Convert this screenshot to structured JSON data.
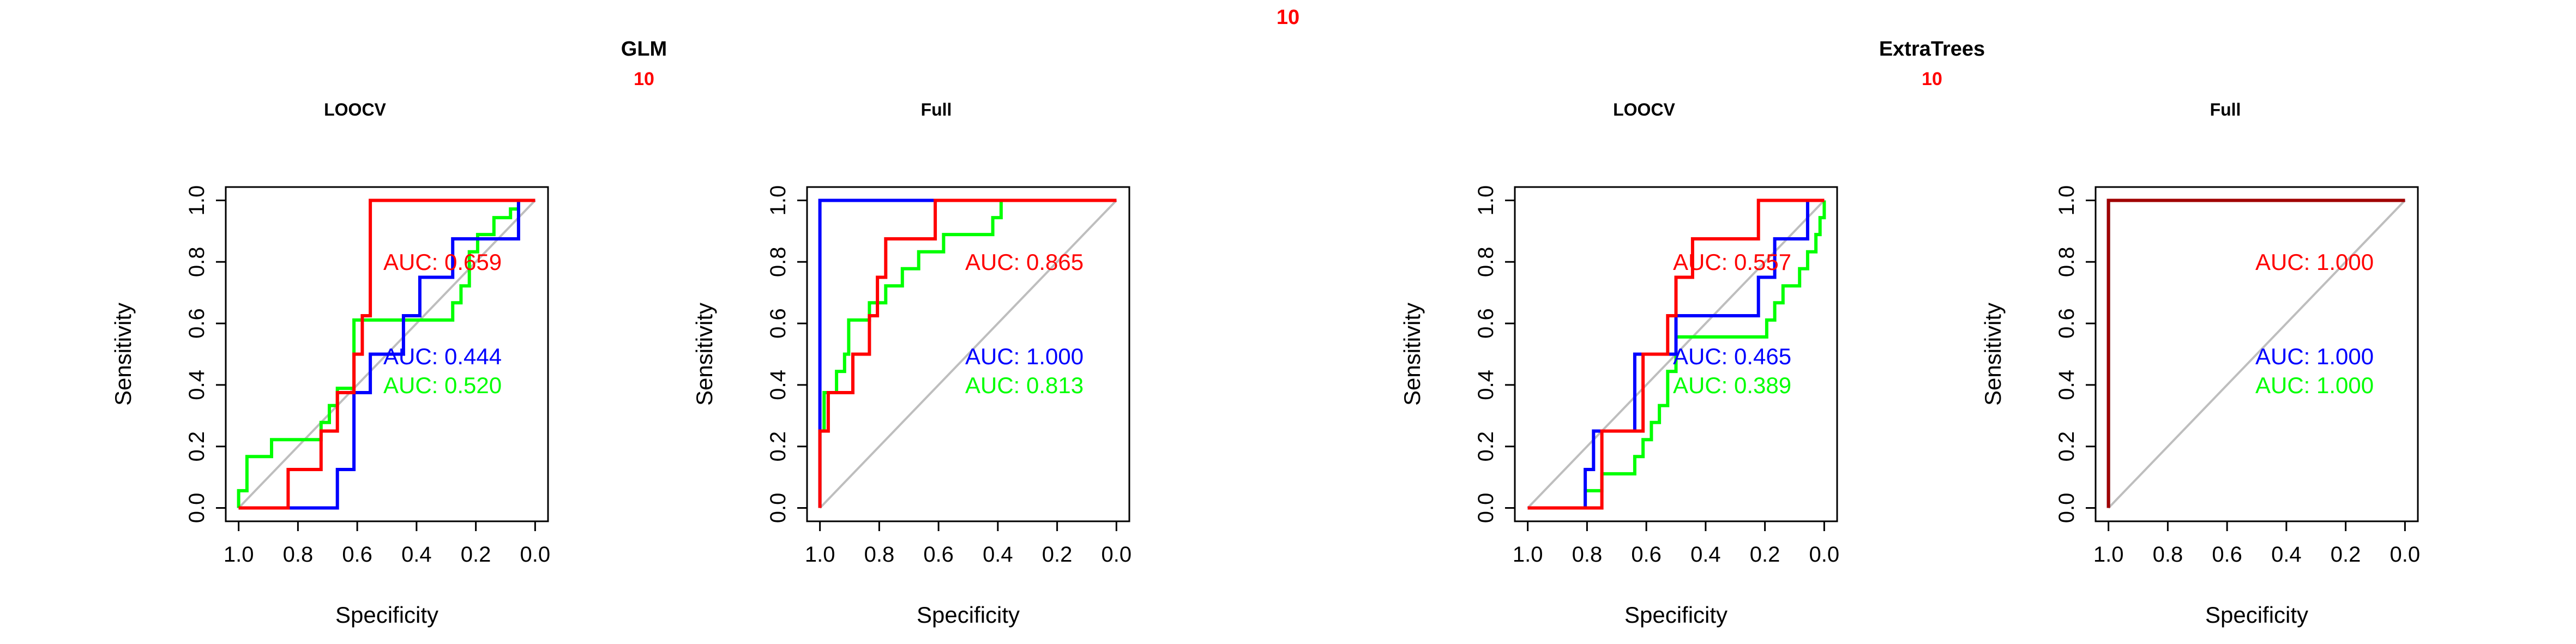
{
  "figure": {
    "header_label": "10",
    "groups": [
      {
        "title": "GLM",
        "subtitle": "10"
      },
      {
        "title": "ExtraTrees",
        "subtitle": "10"
      }
    ]
  },
  "colors": {
    "red": "#ff0000",
    "blue": "#0000ff",
    "green": "#00ff00",
    "darkred": "#a00000",
    "diagonal": "#bebebe"
  },
  "chart_data": [
    {
      "type": "line",
      "group": "GLM",
      "title": "LOOCV",
      "xlabel": "Specificity",
      "ylabel": "Sensitivity",
      "xlim": [
        1.0,
        0.0
      ],
      "ylim": [
        0.0,
        1.0
      ],
      "x_ticks": [
        "1.0",
        "0.8",
        "0.6",
        "0.4",
        "0.2",
        "0.0"
      ],
      "y_ticks": [
        "0.0",
        "0.2",
        "0.4",
        "0.6",
        "0.8",
        "1.0"
      ],
      "diagonal": true,
      "series": [
        {
          "color": "red",
          "auc": "AUC: 0.659",
          "points": [
            [
              1.0,
              0.0
            ],
            [
              0.833,
              0.0
            ],
            [
              0.833,
              0.125
            ],
            [
              0.722,
              0.125
            ],
            [
              0.722,
              0.25
            ],
            [
              0.667,
              0.25
            ],
            [
              0.667,
              0.375
            ],
            [
              0.611,
              0.375
            ],
            [
              0.611,
              0.5
            ],
            [
              0.583,
              0.5
            ],
            [
              0.583,
              0.625
            ],
            [
              0.556,
              0.625
            ],
            [
              0.556,
              1.0
            ],
            [
              0.0,
              1.0
            ]
          ]
        },
        {
          "color": "blue",
          "auc": "AUC: 0.444",
          "points": [
            [
              1.0,
              0.0
            ],
            [
              0.667,
              0.0
            ],
            [
              0.667,
              0.125
            ],
            [
              0.611,
              0.125
            ],
            [
              0.611,
              0.375
            ],
            [
              0.556,
              0.375
            ],
            [
              0.556,
              0.5
            ],
            [
              0.444,
              0.5
            ],
            [
              0.444,
              0.625
            ],
            [
              0.389,
              0.625
            ],
            [
              0.389,
              0.75
            ],
            [
              0.278,
              0.75
            ],
            [
              0.278,
              0.875
            ],
            [
              0.056,
              0.875
            ],
            [
              0.056,
              1.0
            ],
            [
              0.0,
              1.0
            ]
          ]
        },
        {
          "color": "green",
          "auc": "AUC: 0.520",
          "points": [
            [
              1.0,
              0.0
            ],
            [
              1.0,
              0.056
            ],
            [
              0.972,
              0.056
            ],
            [
              0.972,
              0.111
            ],
            [
              0.972,
              0.167
            ],
            [
              0.889,
              0.167
            ],
            [
              0.889,
              0.222
            ],
            [
              0.722,
              0.222
            ],
            [
              0.722,
              0.278
            ],
            [
              0.694,
              0.278
            ],
            [
              0.694,
              0.333
            ],
            [
              0.667,
              0.333
            ],
            [
              0.667,
              0.389
            ],
            [
              0.611,
              0.389
            ],
            [
              0.611,
              0.611
            ],
            [
              0.278,
              0.611
            ],
            [
              0.278,
              0.667
            ],
            [
              0.25,
              0.667
            ],
            [
              0.25,
              0.722
            ],
            [
              0.222,
              0.722
            ],
            [
              0.222,
              0.833
            ],
            [
              0.194,
              0.833
            ],
            [
              0.194,
              0.889
            ],
            [
              0.139,
              0.889
            ],
            [
              0.139,
              0.944
            ],
            [
              0.083,
              0.944
            ],
            [
              0.083,
              0.972
            ],
            [
              0.056,
              0.972
            ],
            [
              0.056,
              1.0
            ],
            [
              0.0,
              1.0
            ]
          ]
        }
      ]
    },
    {
      "type": "line",
      "group": "GLM",
      "title": "Full",
      "xlabel": "Specificity",
      "ylabel": "Sensitivity",
      "xlim": [
        1.0,
        0.0
      ],
      "ylim": [
        0.0,
        1.0
      ],
      "x_ticks": [
        "1.0",
        "0.8",
        "0.6",
        "0.4",
        "0.2",
        "0.0"
      ],
      "y_ticks": [
        "0.0",
        "0.2",
        "0.4",
        "0.6",
        "0.8",
        "1.0"
      ],
      "diagonal": true,
      "series": [
        {
          "color": "red",
          "auc": "AUC: 0.865",
          "points": [
            [
              1.0,
              0.0
            ],
            [
              1.0,
              0.25
            ],
            [
              0.972,
              0.25
            ],
            [
              0.972,
              0.375
            ],
            [
              0.889,
              0.375
            ],
            [
              0.889,
              0.5
            ],
            [
              0.833,
              0.5
            ],
            [
              0.833,
              0.625
            ],
            [
              0.806,
              0.625
            ],
            [
              0.806,
              0.75
            ],
            [
              0.778,
              0.75
            ],
            [
              0.778,
              0.875
            ],
            [
              0.611,
              0.875
            ],
            [
              0.611,
              1.0
            ],
            [
              0.0,
              1.0
            ]
          ]
        },
        {
          "color": "blue",
          "auc": "AUC: 1.000",
          "points": [
            [
              1.0,
              0.0
            ],
            [
              1.0,
              1.0
            ],
            [
              0.0,
              1.0
            ]
          ]
        },
        {
          "color": "green",
          "auc": "AUC: 0.813",
          "points": [
            [
              1.0,
              0.0
            ],
            [
              1.0,
              0.25
            ],
            [
              0.986,
              0.25
            ],
            [
              0.986,
              0.375
            ],
            [
              0.944,
              0.375
            ],
            [
              0.944,
              0.444
            ],
            [
              0.917,
              0.444
            ],
            [
              0.917,
              0.5
            ],
            [
              0.903,
              0.5
            ],
            [
              0.903,
              0.611
            ],
            [
              0.833,
              0.611
            ],
            [
              0.833,
              0.667
            ],
            [
              0.778,
              0.667
            ],
            [
              0.778,
              0.722
            ],
            [
              0.722,
              0.722
            ],
            [
              0.722,
              0.778
            ],
            [
              0.667,
              0.778
            ],
            [
              0.667,
              0.833
            ],
            [
              0.583,
              0.833
            ],
            [
              0.583,
              0.889
            ],
            [
              0.417,
              0.889
            ],
            [
              0.417,
              0.944
            ],
            [
              0.389,
              0.944
            ],
            [
              0.389,
              1.0
            ],
            [
              0.0,
              1.0
            ]
          ]
        }
      ]
    },
    {
      "type": "line",
      "group": "ExtraTrees",
      "title": "LOOCV",
      "xlabel": "Specificity",
      "ylabel": "Sensitivity",
      "xlim": [
        1.0,
        0.0
      ],
      "ylim": [
        0.0,
        1.0
      ],
      "x_ticks": [
        "1.0",
        "0.8",
        "0.6",
        "0.4",
        "0.2",
        "0.0"
      ],
      "y_ticks": [
        "0.0",
        "0.2",
        "0.4",
        "0.6",
        "0.8",
        "1.0"
      ],
      "diagonal": true,
      "series": [
        {
          "color": "red",
          "auc": "AUC: 0.557",
          "points": [
            [
              1.0,
              0.0
            ],
            [
              0.75,
              0.0
            ],
            [
              0.75,
              0.25
            ],
            [
              0.611,
              0.25
            ],
            [
              0.611,
              0.5
            ],
            [
              0.528,
              0.5
            ],
            [
              0.528,
              0.625
            ],
            [
              0.5,
              0.625
            ],
            [
              0.5,
              0.75
            ],
            [
              0.444,
              0.75
            ],
            [
              0.444,
              0.875
            ],
            [
              0.222,
              0.875
            ],
            [
              0.222,
              1.0
            ],
            [
              0.0,
              1.0
            ]
          ]
        },
        {
          "color": "blue",
          "auc": "AUC: 0.465",
          "points": [
            [
              1.0,
              0.0
            ],
            [
              0.806,
              0.0
            ],
            [
              0.806,
              0.125
            ],
            [
              0.778,
              0.125
            ],
            [
              0.778,
              0.25
            ],
            [
              0.639,
              0.25
            ],
            [
              0.639,
              0.5
            ],
            [
              0.5,
              0.5
            ],
            [
              0.5,
              0.625
            ],
            [
              0.222,
              0.625
            ],
            [
              0.222,
              0.75
            ],
            [
              0.167,
              0.75
            ],
            [
              0.167,
              0.875
            ],
            [
              0.056,
              0.875
            ],
            [
              0.056,
              1.0
            ],
            [
              0.0,
              1.0
            ]
          ]
        },
        {
          "color": "green",
          "auc": "AUC: 0.389",
          "points": [
            [
              1.0,
              0.0
            ],
            [
              0.806,
              0.0
            ],
            [
              0.806,
              0.056
            ],
            [
              0.75,
              0.056
            ],
            [
              0.75,
              0.111
            ],
            [
              0.639,
              0.111
            ],
            [
              0.639,
              0.167
            ],
            [
              0.611,
              0.167
            ],
            [
              0.611,
              0.222
            ],
            [
              0.583,
              0.222
            ],
            [
              0.583,
              0.278
            ],
            [
              0.556,
              0.278
            ],
            [
              0.556,
              0.333
            ],
            [
              0.528,
              0.333
            ],
            [
              0.528,
              0.444
            ],
            [
              0.5,
              0.444
            ],
            [
              0.5,
              0.556
            ],
            [
              0.194,
              0.556
            ],
            [
              0.194,
              0.611
            ],
            [
              0.167,
              0.611
            ],
            [
              0.167,
              0.667
            ],
            [
              0.139,
              0.667
            ],
            [
              0.139,
              0.722
            ],
            [
              0.083,
              0.722
            ],
            [
              0.083,
              0.778
            ],
            [
              0.056,
              0.778
            ],
            [
              0.056,
              0.833
            ],
            [
              0.028,
              0.833
            ],
            [
              0.028,
              0.889
            ],
            [
              0.014,
              0.889
            ],
            [
              0.014,
              0.944
            ],
            [
              0.0,
              0.944
            ],
            [
              0.0,
              1.0
            ]
          ]
        }
      ]
    },
    {
      "type": "line",
      "group": "ExtraTrees",
      "title": "Full",
      "xlabel": "Specificity",
      "ylabel": "Sensitivity",
      "xlim": [
        1.0,
        0.0
      ],
      "ylim": [
        0.0,
        1.0
      ],
      "x_ticks": [
        "1.0",
        "0.8",
        "0.6",
        "0.4",
        "0.2",
        "0.0"
      ],
      "y_ticks": [
        "0.0",
        "0.2",
        "0.4",
        "0.6",
        "0.8",
        "1.0"
      ],
      "diagonal": true,
      "series": [
        {
          "color": "red",
          "auc": "AUC: 1.000",
          "points": [
            [
              1.0,
              0.0
            ],
            [
              1.0,
              1.0
            ],
            [
              0.0,
              1.0
            ]
          ]
        },
        {
          "color": "blue",
          "auc": "AUC: 1.000",
          "points": [
            [
              1.0,
              0.0
            ],
            [
              1.0,
              1.0
            ],
            [
              0.0,
              1.0
            ]
          ]
        },
        {
          "color": "green",
          "auc": "AUC: 1.000",
          "points": [
            [
              1.0,
              0.0
            ],
            [
              1.0,
              1.0
            ],
            [
              0.0,
              1.0
            ]
          ]
        }
      ]
    }
  ]
}
